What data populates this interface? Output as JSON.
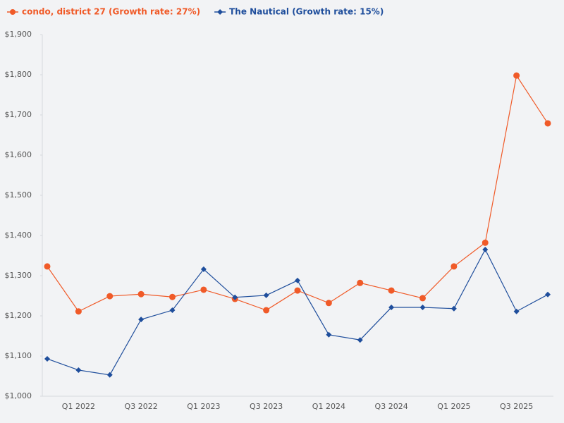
{
  "chart_data": {
    "type": "line",
    "categories": [
      null,
      "Q1 2022",
      null,
      "Q3 2022",
      null,
      "Q1 2023",
      null,
      "Q3 2023",
      null,
      "Q1 2024",
      null,
      "Q3 2024",
      null,
      "Q1 2025",
      null,
      "Q3 2025",
      null
    ],
    "series": [
      {
        "name": "condo, district 27 (Growth rate: 27%)",
        "color": "#f05a28",
        "marker": "circle",
        "values": [
          1323,
          1211,
          1249,
          1254,
          1247,
          1265,
          1242,
          1214,
          1263,
          1232,
          1282,
          1263,
          1244,
          1323,
          1382,
          1798,
          1679
        ]
      },
      {
        "name": "The Nautical (Growth rate: 15%)",
        "color": "#1f4e9c",
        "marker": "diamond",
        "values": [
          1093,
          1065,
          1053,
          1191,
          1214,
          1316,
          1246,
          1251,
          1288,
          1153,
          1140,
          1221,
          1221,
          1218,
          1365,
          1211,
          1253
        ]
      }
    ],
    "ylim": [
      1000,
      1900
    ],
    "yticks": [
      {
        "value": 1000,
        "label": "$1,000"
      },
      {
        "value": 1100,
        "label": "$1,100"
      },
      {
        "value": 1200,
        "label": "$1,200"
      },
      {
        "value": 1300,
        "label": "$1,300"
      },
      {
        "value": 1400,
        "label": "$1,400"
      },
      {
        "value": 1500,
        "label": "$1,500"
      },
      {
        "value": 1600,
        "label": "$1,600"
      },
      {
        "value": 1700,
        "label": "$1,700"
      },
      {
        "value": 1800,
        "label": "$1,800"
      },
      {
        "value": 1900,
        "label": "$1,900"
      }
    ],
    "legend": "top-left"
  }
}
